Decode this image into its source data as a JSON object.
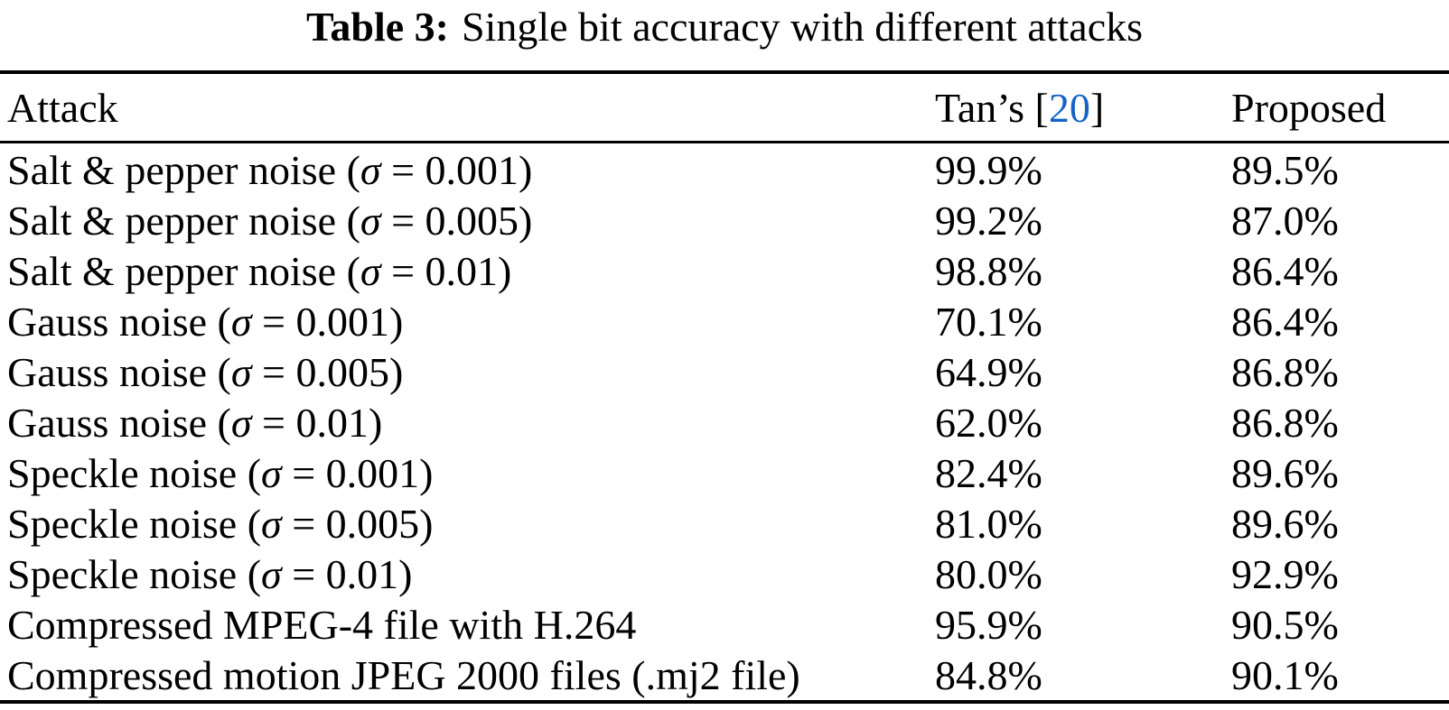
{
  "caption": {
    "label": "Table 3:",
    "text": "Single bit accuracy with different attacks"
  },
  "colors": {
    "text": "#000000",
    "citation_blue": "#1464c8",
    "background": "#ffffff",
    "rule": "#000000"
  },
  "header": {
    "attack": "Attack",
    "tans_prefix": "Tan’s ",
    "citation_open": "[",
    "citation_number": "20",
    "citation_close": "]",
    "proposed": "Proposed"
  },
  "rows": [
    {
      "attack_pre": "Salt & pepper noise (",
      "sigma": "σ",
      "attack_post": " = 0.001)",
      "tans": "99.9%",
      "proposed": "89.5%"
    },
    {
      "attack_pre": "Salt & pepper noise (",
      "sigma": "σ",
      "attack_post": " = 0.005)",
      "tans": "99.2%",
      "proposed": "87.0%"
    },
    {
      "attack_pre": "Salt & pepper noise (",
      "sigma": "σ",
      "attack_post": " = 0.01)",
      "tans": "98.8%",
      "proposed": "86.4%"
    },
    {
      "attack_pre": "Gauss noise (",
      "sigma": "σ",
      "attack_post": " = 0.001)",
      "tans": "70.1%",
      "proposed": "86.4%"
    },
    {
      "attack_pre": "Gauss noise (",
      "sigma": "σ",
      "attack_post": " = 0.005)",
      "tans": "64.9%",
      "proposed": "86.8%"
    },
    {
      "attack_pre": "Gauss noise (",
      "sigma": "σ",
      "attack_post": " = 0.01)",
      "tans": "62.0%",
      "proposed": "86.8%"
    },
    {
      "attack_pre": "Speckle noise (",
      "sigma": "σ",
      "attack_post": " = 0.001)",
      "tans": "82.4%",
      "proposed": "89.6%"
    },
    {
      "attack_pre": "Speckle noise (",
      "sigma": "σ",
      "attack_post": " = 0.005)",
      "tans": "81.0%",
      "proposed": "89.6%"
    },
    {
      "attack_pre": "Speckle noise (",
      "sigma": "σ",
      "attack_post": " = 0.01)",
      "tans": "80.0%",
      "proposed": "92.9%"
    },
    {
      "attack_pre": "Compressed MPEG-4 file with H.264",
      "sigma": "",
      "attack_post": "",
      "tans": "95.9%",
      "proposed": "90.5%"
    },
    {
      "attack_pre": "Compressed motion JPEG 2000 files (.mj2 file)",
      "sigma": "",
      "attack_post": "",
      "tans": "84.8%",
      "proposed": "90.1%"
    }
  ]
}
